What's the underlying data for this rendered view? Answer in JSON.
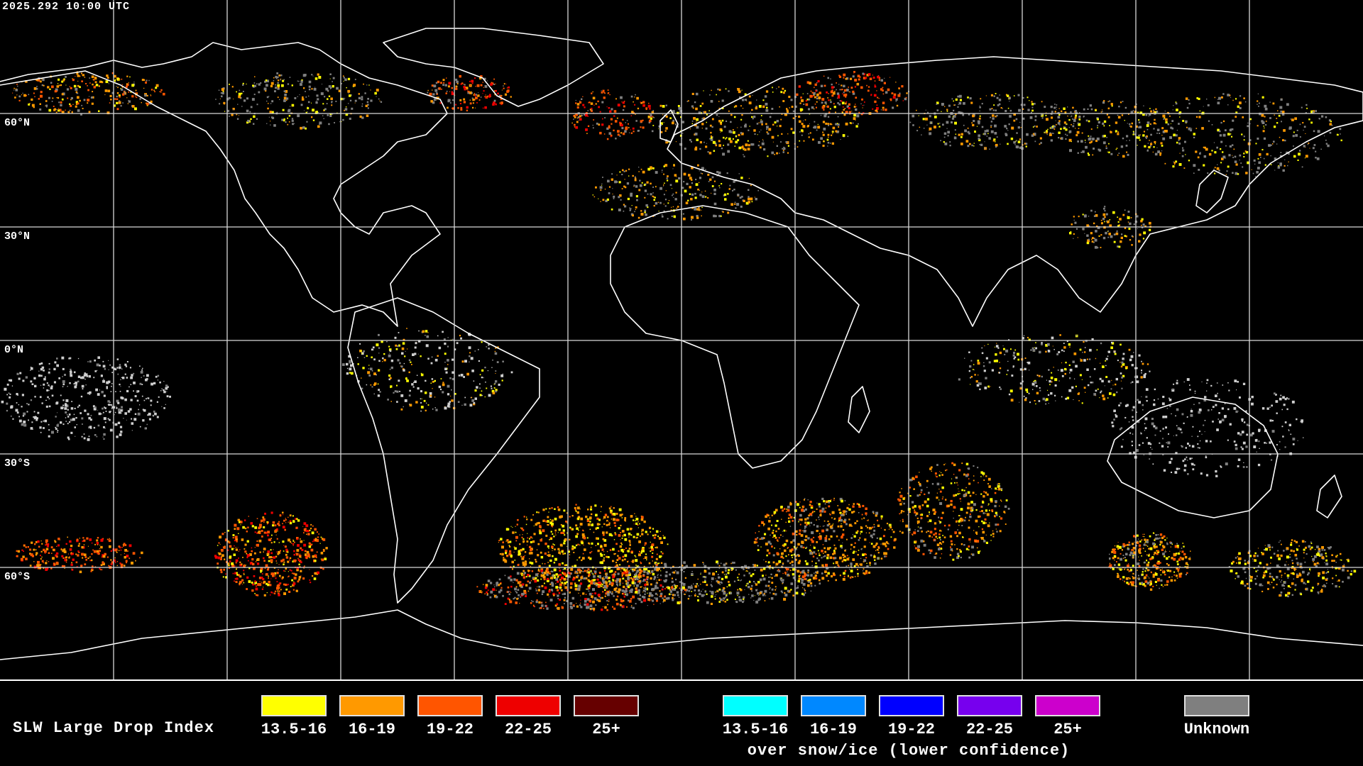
{
  "timestamp": "2025.292 10:00 UTC",
  "lat_labels": [
    "60°N",
    "30°N",
    "0°N",
    "30°S",
    "60°S"
  ],
  "legend": {
    "title": "SLW Large Drop Index",
    "normal": [
      {
        "label": "13.5-16",
        "color": "#ffff00"
      },
      {
        "label": "16-19",
        "color": "#ff9900"
      },
      {
        "label": "19-22",
        "color": "#ff5500"
      },
      {
        "label": "22-25",
        "color": "#ee0000"
      },
      {
        "label": "25+",
        "color": "#660000"
      }
    ],
    "snow_ice": [
      {
        "label": "13.5-16",
        "color": "#00ffff"
      },
      {
        "label": "16-19",
        "color": "#0088ff"
      },
      {
        "label": "19-22",
        "color": "#0000ff"
      },
      {
        "label": "22-25",
        "color": "#7700ee"
      },
      {
        "label": "25+",
        "color": "#cc00cc"
      }
    ],
    "snow_note": "over snow/ice (lower confidence)",
    "unknown": {
      "label": "Unknown",
      "color": "#7f7f7f"
    }
  }
}
